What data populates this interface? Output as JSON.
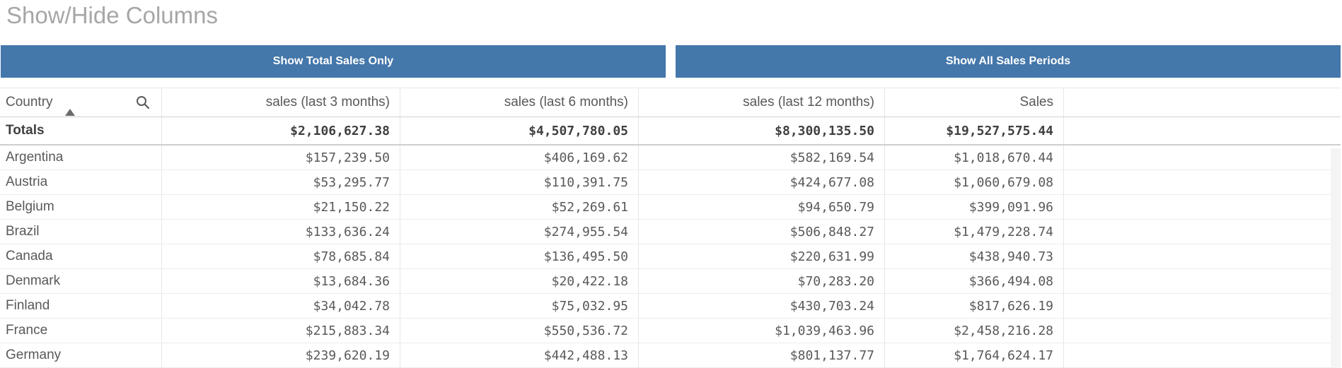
{
  "title": "Show/Hide Columns",
  "buttons": {
    "total_only": "Show Total Sales Only",
    "all_periods": "Show All Sales Periods"
  },
  "colors": {
    "button_bg": "#4477aa",
    "button_text": "#ffffff",
    "title_text": "#a6a6a6"
  },
  "table": {
    "headers": [
      "Country",
      "sales (last 3 months)",
      "sales (last 6 months)",
      "sales (last 12 months)",
      "Sales"
    ],
    "sort": {
      "column": "Country",
      "direction": "ascending",
      "icon": "sort-up-icon"
    },
    "search_icon": "search-icon",
    "totals": {
      "label": "Totals",
      "values": [
        "$2,106,627.38",
        "$4,507,780.05",
        "$8,300,135.50",
        "$19,527,575.44"
      ]
    },
    "rows": [
      {
        "country": "Argentina",
        "values": [
          "$157,239.50",
          "$406,169.62",
          "$582,169.54",
          "$1,018,670.44"
        ]
      },
      {
        "country": "Austria",
        "values": [
          "$53,295.77",
          "$110,391.75",
          "$424,677.08",
          "$1,060,679.08"
        ]
      },
      {
        "country": "Belgium",
        "values": [
          "$21,150.22",
          "$52,269.61",
          "$94,650.79",
          "$399,091.96"
        ]
      },
      {
        "country": "Brazil",
        "values": [
          "$133,636.24",
          "$274,955.54",
          "$506,848.27",
          "$1,479,228.74"
        ]
      },
      {
        "country": "Canada",
        "values": [
          "$78,685.84",
          "$136,495.50",
          "$220,631.99",
          "$438,940.73"
        ]
      },
      {
        "country": "Denmark",
        "values": [
          "$13,684.36",
          "$20,422.18",
          "$70,283.20",
          "$366,494.08"
        ]
      },
      {
        "country": "Finland",
        "values": [
          "$34,042.78",
          "$75,032.95",
          "$430,703.24",
          "$817,626.19"
        ]
      },
      {
        "country": "France",
        "values": [
          "$215,883.34",
          "$550,536.72",
          "$1,039,463.96",
          "$2,458,216.28"
        ]
      },
      {
        "country": "Germany",
        "values": [
          "$239,620.19",
          "$442,488.13",
          "$801,137.77",
          "$1,764,624.17"
        ]
      }
    ]
  }
}
